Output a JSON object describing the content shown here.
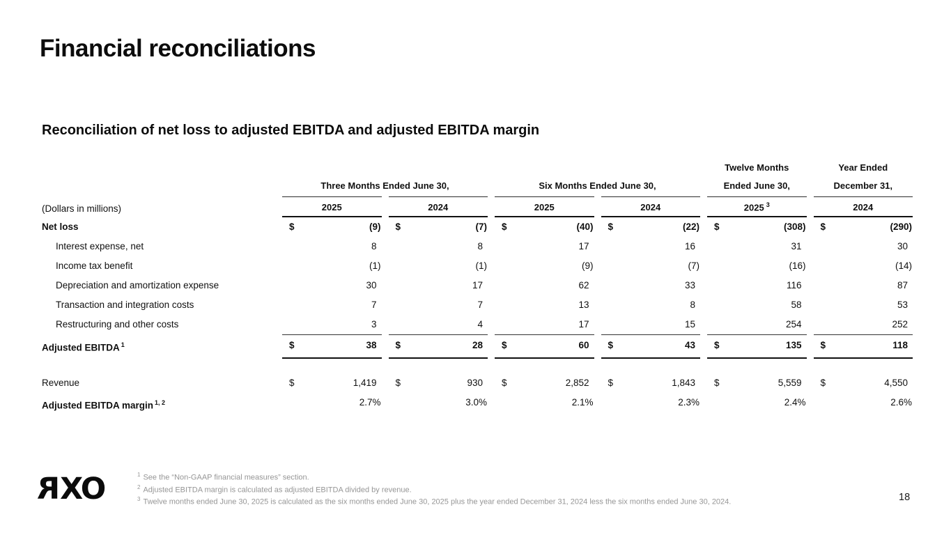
{
  "slide": {
    "title": "Financial reconciliations",
    "subtitle": "Reconciliation of net loss to adjusted EBITDA and adjusted EBITDA margin",
    "page_number": "18"
  },
  "logo": {
    "r": "R",
    "x": "X",
    "o": "O"
  },
  "table": {
    "units_label": "(Dollars in millions)",
    "groups": [
      {
        "label": "Three Months Ended June 30,"
      },
      {
        "label": "Six Months Ended June 30,"
      },
      {
        "line1": "Twelve Months",
        "line2": "Ended June 30,"
      },
      {
        "line1": "Year Ended",
        "line2": "December 31,"
      }
    ],
    "year_headers": [
      {
        "year": "2025"
      },
      {
        "year": "2024"
      },
      {
        "year": "2025"
      },
      {
        "year": "2024"
      },
      {
        "year": "2025",
        "sup": "3"
      },
      {
        "year": "2024"
      }
    ],
    "rows": [
      {
        "label": "Net loss",
        "dollar": "$",
        "values": [
          "(9)",
          "(7)",
          "(40)",
          "(22)",
          "(308)",
          "(290)"
        ]
      },
      {
        "label": "Interest expense, net",
        "values": [
          "8",
          "8",
          "17",
          "16",
          "31",
          "30"
        ]
      },
      {
        "label": "Income tax benefit",
        "values": [
          "(1)",
          "(1)",
          "(9)",
          "(7)",
          "(16)",
          "(14)"
        ]
      },
      {
        "label": "Depreciation and amortization expense",
        "values": [
          "30",
          "17",
          "62",
          "33",
          "116",
          "87"
        ]
      },
      {
        "label": "Transaction and integration costs",
        "values": [
          "7",
          "7",
          "13",
          "8",
          "58",
          "53"
        ]
      },
      {
        "label": "Restructuring and other costs",
        "values": [
          "3",
          "4",
          "17",
          "15",
          "254",
          "252"
        ]
      },
      {
        "label": "Adjusted EBITDA",
        "sup": "1",
        "dollar": "$",
        "values": [
          "38",
          "28",
          "60",
          "43",
          "135",
          "118"
        ]
      },
      {
        "label": "Revenue",
        "dollar": "$",
        "values": [
          "1,419",
          "930",
          "2,852",
          "1,843",
          "5,559",
          "4,550"
        ]
      },
      {
        "label": "Adjusted EBITDA margin",
        "sup": "1, 2",
        "values": [
          "2.7%",
          "3.0%",
          "2.1%",
          "2.3%",
          "2.4%",
          "2.6%"
        ]
      }
    ]
  },
  "footnotes": [
    {
      "marker": "1",
      "text": "See the “Non-GAAP financial measures” section."
    },
    {
      "marker": "2",
      "text": "Adjusted EBITDA margin is calculated as adjusted EBITDA divided by revenue."
    },
    {
      "marker": "3",
      "text": "Twelve months ended June 30, 2025 is calculated as the six months ended June 30, 2025 plus the year ended December 31, 2024 less the six months ended June 30, 2024."
    }
  ]
}
